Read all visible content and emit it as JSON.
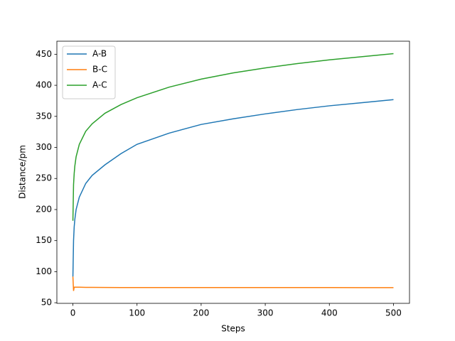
{
  "chart_data": {
    "type": "line",
    "x_label": "Steps",
    "y_label": "Distance/pm",
    "x": [
      0,
      1,
      2,
      3,
      5,
      10,
      20,
      30,
      50,
      75,
      100,
      150,
      200,
      250,
      300,
      350,
      400,
      450,
      500
    ],
    "series": [
      {
        "name": "A-B",
        "color": "#1f77b4",
        "values": [
          92,
          150,
          172,
          184,
          200,
          220,
          242,
          255,
          272,
          290,
          305,
          323,
          337,
          346,
          354,
          361,
          367,
          372,
          377
        ]
      },
      {
        "name": "B-C",
        "color": "#ff7f0e",
        "values": [
          92,
          69,
          75,
          75,
          75,
          75,
          74.8,
          74.7,
          74.6,
          74.5,
          74.5,
          74.5,
          74.4,
          74.4,
          74.4,
          74.4,
          74.4,
          74.3,
          74.3
        ]
      },
      {
        "name": "A-C",
        "color": "#2ca02c",
        "values": [
          182,
          240,
          258,
          270,
          285,
          305,
          326,
          338,
          355,
          369,
          380,
          397,
          410,
          420,
          428,
          435,
          441,
          446,
          451
        ]
      }
    ],
    "xlim": [
      -25,
      525
    ],
    "ylim": [
      49,
      471
    ],
    "xticks": [
      0,
      100,
      200,
      300,
      400,
      500
    ],
    "yticks": [
      50,
      100,
      150,
      200,
      250,
      300,
      350,
      400,
      450
    ],
    "grid": false,
    "legend": "upper-left"
  }
}
